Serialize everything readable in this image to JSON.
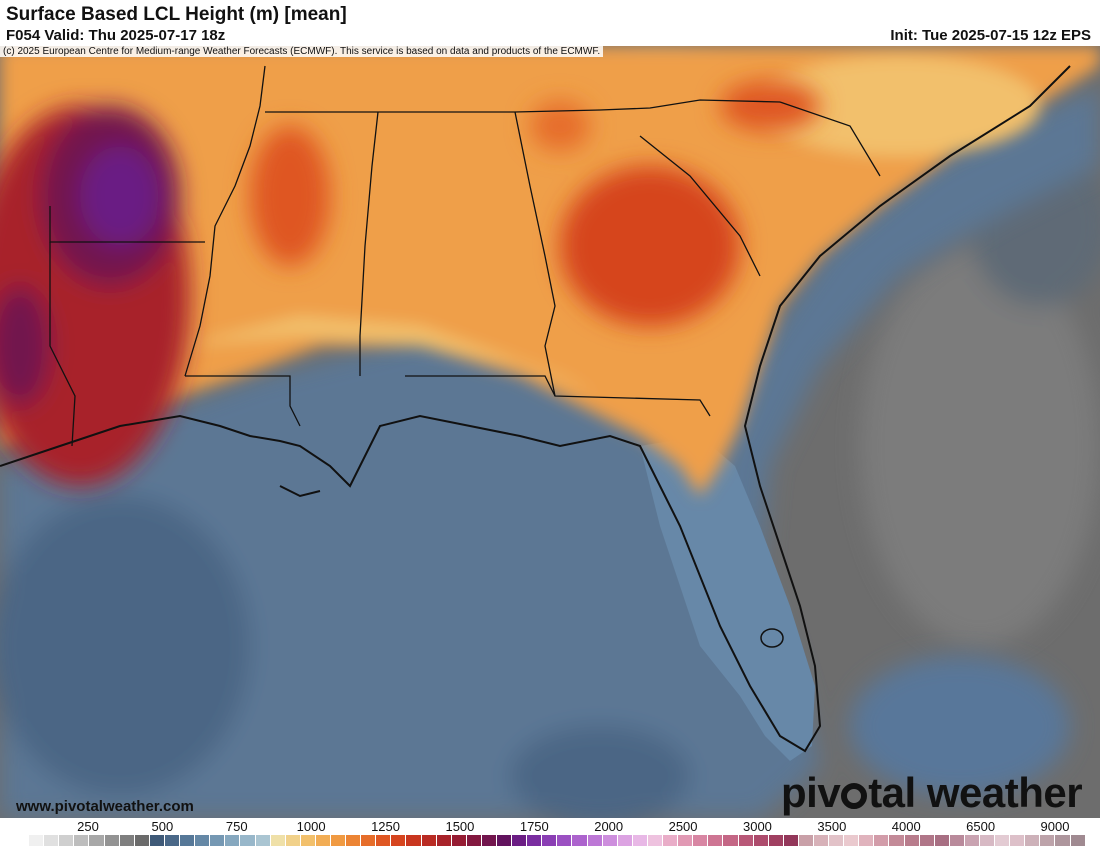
{
  "header": {
    "title": "Surface Based LCL Height (m) [mean]",
    "valid": "F054 Valid: Thu 2025-07-17 18z",
    "init": "Init: Tue 2025-07-15 12z EPS"
  },
  "copyright": "(c) 2025 European Centre for Medium-range Weather Forecasts (ECMWF). This service is based on data and products of the ECMWF.",
  "footer": {
    "website": "www.pivotalweather.com",
    "brand_left": "piv",
    "brand_right": "tal weather"
  },
  "legend": {
    "ticks": [
      "250",
      "500",
      "750",
      "1000",
      "1250",
      "1500",
      "1750",
      "2000",
      "2500",
      "3000",
      "3500",
      "4000",
      "6500",
      "9000"
    ],
    "colors": [
      "#ffffff",
      "#f0f0f0",
      "#e0e0e0",
      "#cfcfcf",
      "#bdbdbd",
      "#a8a8a8",
      "#939393",
      "#7f7f7f",
      "#6b6b6b",
      "#3f5a78",
      "#4a6888",
      "#567898",
      "#6588a6",
      "#7598b3",
      "#86a8bf",
      "#98b7ca",
      "#aac5d2",
      "#efe0a8",
      "#f1d18a",
      "#f2c06c",
      "#f2ad55",
      "#f09a42",
      "#ec8434",
      "#e66d2a",
      "#df5723",
      "#d6451f",
      "#c9361f",
      "#b92b23",
      "#a8232a",
      "#961c33",
      "#83183f",
      "#72154d",
      "#62135e",
      "#6b1d84",
      "#7a2da0",
      "#8a3eb4",
      "#9b50c2",
      "#ac63cd",
      "#bd78d6",
      "#cd8edd",
      "#dca3e2",
      "#e8b8e6",
      "#eec2df",
      "#e9adc8",
      "#e199b4",
      "#d886a3",
      "#ce7593",
      "#c46685",
      "#b95878",
      "#ad4b6c",
      "#a04061",
      "#93375a",
      "#c9a0a8",
      "#d7b1b8",
      "#e2c2c8",
      "#eac9ce",
      "#e0b3bd",
      "#d29ca9",
      "#c38a98",
      "#b87c8c",
      "#b07688",
      "#a86f83",
      "#b98a9b",
      "#c9a3b1",
      "#d7b9c4",
      "#e3cbd3",
      "#ddc0c9",
      "#cdb1b9",
      "#bda3aa",
      "#ae969d",
      "#a08a91"
    ]
  }
}
